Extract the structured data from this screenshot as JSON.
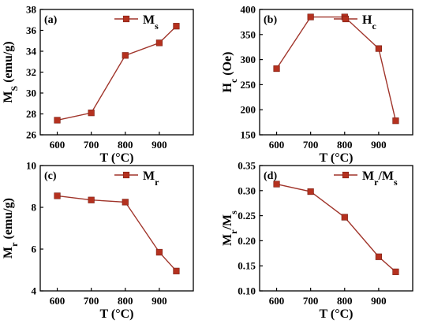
{
  "chart_data": [
    {
      "type": "line",
      "panel_label": "(a)",
      "x": [
        600,
        700,
        800,
        900,
        950
      ],
      "series": [
        {
          "name": "Ms",
          "name_main": "M",
          "name_sub": "s",
          "values": [
            27.4,
            28.1,
            33.6,
            34.8,
            36.4
          ]
        }
      ],
      "xlabel": "T (°C)",
      "ylabel": "Ms (emu/g)",
      "ylabel_main": "M",
      "ylabel_sub": "S",
      "ylabel_rest": " (emu/g)",
      "xlim": [
        550,
        1000
      ],
      "ylim": [
        26,
        38
      ],
      "xticks": [
        600,
        700,
        800,
        900
      ],
      "yticks": [
        26,
        28,
        30,
        32,
        34,
        36,
        38
      ],
      "legend": "top-right",
      "color": "#a0342a",
      "marker_color": "#b5311f"
    },
    {
      "type": "line",
      "panel_label": "(b)",
      "x": [
        600,
        700,
        800,
        900,
        950
      ],
      "series": [
        {
          "name": "Hc",
          "name_main": "H",
          "name_sub": "c",
          "values": [
            282,
            385,
            385,
            322,
            178
          ]
        }
      ],
      "xlabel": "T (°C)",
      "ylabel": "Hc (Oe)",
      "ylabel_main": "H",
      "ylabel_sub": "c",
      "ylabel_rest": " (Oe)",
      "xlim": [
        550,
        1000
      ],
      "ylim": [
        150,
        400
      ],
      "xticks": [
        600,
        700,
        800,
        900
      ],
      "yticks": [
        150,
        200,
        250,
        300,
        350,
        400
      ],
      "legend": "top-right",
      "color": "#a0342a",
      "marker_color": "#b5311f"
    },
    {
      "type": "line",
      "panel_label": "(c)",
      "x": [
        600,
        700,
        800,
        900,
        950
      ],
      "series": [
        {
          "name": "Mr",
          "name_main": "M",
          "name_sub": "r",
          "values": [
            8.55,
            8.35,
            8.25,
            5.85,
            4.95
          ]
        }
      ],
      "xlabel": "T (°C)",
      "ylabel": "Mr (emu/g)",
      "ylabel_main": "M",
      "ylabel_sub": "r",
      "ylabel_rest": " (emu/g)",
      "xlim": [
        550,
        1000
      ],
      "ylim": [
        4,
        10
      ],
      "xticks": [
        600,
        700,
        800,
        900
      ],
      "yticks": [
        4,
        6,
        8,
        10
      ],
      "legend": "top-right",
      "color": "#a0342a",
      "marker_color": "#b5311f"
    },
    {
      "type": "line",
      "panel_label": "(d)",
      "x": [
        600,
        700,
        800,
        900,
        950
      ],
      "series": [
        {
          "name": "Mr/Ms",
          "name_main": "M",
          "name_sub": "r",
          "name_mid": "/M",
          "name_sub2": "s",
          "values": [
            0.313,
            0.298,
            0.247,
            0.168,
            0.138
          ]
        }
      ],
      "xlabel": "T (°C)",
      "ylabel": "Mr/Ms",
      "ylabel_main": "M",
      "ylabel_sub": "r",
      "ylabel_rest": "/M",
      "ylabel_sub2": "s",
      "xlim": [
        550,
        1000
      ],
      "ylim": [
        0.1,
        0.35
      ],
      "xticks": [
        600,
        700,
        800,
        900
      ],
      "yticks": [
        0.1,
        0.15,
        0.2,
        0.25,
        0.3,
        0.35
      ],
      "ytick_labels": [
        "0.10",
        "0.15",
        "0.20",
        "0.25",
        "0.30",
        "0.35"
      ],
      "legend": "top-right",
      "color": "#a0342a",
      "marker_color": "#b5311f"
    }
  ]
}
